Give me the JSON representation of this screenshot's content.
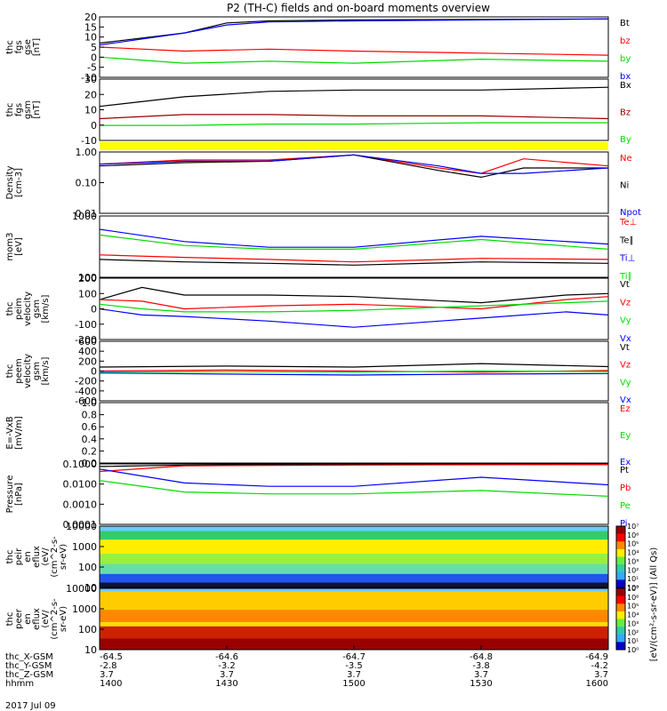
{
  "title": "P2 (TH-C) fields and on-board moments overview",
  "date_label": "2017 Jul 09",
  "colors": {
    "black": "#000000",
    "red": "#ff0000",
    "green": "#00dd00",
    "blue": "#0000ff",
    "darkred": "#990000",
    "yellow": "#ffff00"
  },
  "chart_data": [
    {
      "id": "fgs_gse",
      "type": "line",
      "ylabel": [
        "thc",
        "fgs",
        "gse",
        "[nT]"
      ],
      "yticks": [
        "20",
        "15",
        "10",
        "5",
        "0",
        "-5",
        "-10"
      ],
      "ylim": [
        -10,
        20
      ],
      "legend": [
        {
          "label": "Bt",
          "color": "black"
        },
        {
          "label": "bz",
          "color": "red"
        },
        {
          "label": "by",
          "color": "green"
        },
        {
          "label": "bx",
          "color": "blue"
        }
      ],
      "series": [
        {
          "name": "Bt",
          "color": "black",
          "x": [
            0,
            10,
            15,
            20,
            30,
            60
          ],
          "y": [
            7,
            12,
            17,
            18,
            18.5,
            19
          ]
        },
        {
          "name": "bz",
          "color": "red",
          "x": [
            0,
            10,
            20,
            30,
            45,
            60
          ],
          "y": [
            5,
            3,
            4,
            3,
            2,
            1
          ]
        },
        {
          "name": "by",
          "color": "green",
          "x": [
            0,
            10,
            20,
            30,
            45,
            60
          ],
          "y": [
            0,
            -3,
            -2,
            -3,
            -1,
            -2
          ]
        },
        {
          "name": "bx",
          "color": "blue",
          "x": [
            0,
            10,
            15,
            20,
            30,
            60
          ],
          "y": [
            6,
            12,
            16,
            17.5,
            18,
            19
          ]
        }
      ]
    },
    {
      "id": "fgs_gsm",
      "type": "line",
      "ylabel": [
        "thc",
        "fgs",
        "gsm",
        "[nT]"
      ],
      "yticks": [
        "30",
        "20",
        "10",
        "0",
        "-10"
      ],
      "ylim": [
        -15,
        30
      ],
      "legend": [
        {
          "label": "Bx",
          "color": "black"
        },
        {
          "label": "Bz",
          "color": "darkred"
        },
        {
          "label": "By",
          "color": "green"
        }
      ],
      "series": [
        {
          "name": "Bx",
          "color": "black",
          "x": [
            0,
            10,
            20,
            30,
            45,
            60
          ],
          "y": [
            10,
            17,
            21,
            22,
            22,
            24
          ]
        },
        {
          "name": "Bz",
          "color": "darkred",
          "x": [
            0,
            10,
            20,
            30,
            45,
            60
          ],
          "y": [
            1,
            4,
            4,
            3,
            3,
            1
          ]
        },
        {
          "name": "By",
          "color": "green",
          "x": [
            0,
            10,
            20,
            30,
            45,
            60
          ],
          "y": [
            -4,
            -4,
            -3,
            -3,
            -2,
            -2
          ]
        }
      ]
    },
    {
      "id": "density",
      "type": "line",
      "log": true,
      "ylabel": [
        "Density",
        "[cm-3]"
      ],
      "yticks": [
        "1.00",
        "0.10",
        "0.01"
      ],
      "ylim": [
        0.01,
        1.0
      ],
      "legend": [
        {
          "label": "Ne",
          "color": "red"
        },
        {
          "label": "Ni",
          "color": "black"
        },
        {
          "label": "Npot",
          "color": "blue"
        }
      ],
      "series": [
        {
          "name": "Ne",
          "color": "red",
          "x": [
            0,
            10,
            20,
            30,
            40,
            45,
            50,
            60
          ],
          "y": [
            0.4,
            0.55,
            0.55,
            0.8,
            0.3,
            0.2,
            0.6,
            0.35
          ]
        },
        {
          "name": "Ni",
          "color": "black",
          "x": [
            0,
            10,
            20,
            30,
            40,
            45,
            50,
            60
          ],
          "y": [
            0.35,
            0.45,
            0.5,
            0.8,
            0.25,
            0.15,
            0.3,
            0.3
          ]
        },
        {
          "name": "Npot",
          "color": "blue",
          "x": [
            0,
            10,
            20,
            30,
            40,
            45,
            50,
            60
          ],
          "y": [
            0.4,
            0.5,
            0.5,
            0.8,
            0.35,
            0.2,
            0.2,
            0.3
          ]
        }
      ]
    },
    {
      "id": "temp",
      "type": "line",
      "log": true,
      "ylabel": [
        "mom3",
        "[eV]"
      ],
      "yticks": [
        "1000",
        "100"
      ],
      "ylim": [
        20,
        5000
      ],
      "legend": [
        {
          "label": "Te⊥",
          "color": "red"
        },
        {
          "label": "Te∥",
          "color": "black"
        },
        {
          "label": "Ti⊥",
          "color": "blue"
        },
        {
          "label": "Ti∥",
          "color": "green"
        }
      ],
      "series": [
        {
          "name": "Te⊥",
          "color": "red",
          "x": [
            0,
            10,
            20,
            30,
            45,
            60
          ],
          "y": [
            150,
            120,
            100,
            80,
            110,
            100
          ]
        },
        {
          "name": "Te∥",
          "color": "black",
          "x": [
            0,
            10,
            20,
            30,
            45,
            60
          ],
          "y": [
            100,
            80,
            70,
            60,
            80,
            70
          ]
        },
        {
          "name": "Ti⊥",
          "color": "blue",
          "x": [
            0,
            10,
            20,
            30,
            45,
            60
          ],
          "y": [
            1500,
            500,
            300,
            300,
            800,
            400
          ]
        },
        {
          "name": "Ti∥",
          "color": "green",
          "x": [
            0,
            10,
            20,
            30,
            45,
            60
          ],
          "y": [
            900,
            350,
            250,
            250,
            600,
            250
          ]
        }
      ]
    },
    {
      "id": "peim",
      "type": "line",
      "ylabel": [
        "thc",
        "peim",
        "velocity",
        "gsm",
        "[km/s]"
      ],
      "yticks": [
        "200",
        "100",
        "0",
        "-100",
        "-200"
      ],
      "ylim": [
        -200,
        200
      ],
      "legend": [
        {
          "label": "Vt",
          "color": "black"
        },
        {
          "label": "Vz",
          "color": "red"
        },
        {
          "label": "Vy",
          "color": "green"
        },
        {
          "label": "Vx",
          "color": "blue"
        }
      ],
      "series": [
        {
          "name": "Vt",
          "color": "black",
          "x": [
            0,
            5,
            10,
            20,
            30,
            45,
            55,
            60
          ],
          "y": [
            60,
            140,
            90,
            90,
            80,
            40,
            90,
            100
          ]
        },
        {
          "name": "Vz",
          "color": "red",
          "x": [
            0,
            5,
            10,
            20,
            30,
            45,
            55,
            60
          ],
          "y": [
            60,
            50,
            0,
            20,
            30,
            0,
            60,
            80
          ]
        },
        {
          "name": "Vy",
          "color": "green",
          "x": [
            0,
            5,
            10,
            20,
            30,
            45,
            55,
            60
          ],
          "y": [
            30,
            0,
            -20,
            -20,
            -10,
            20,
            40,
            50
          ]
        },
        {
          "name": "Vx",
          "color": "blue",
          "x": [
            0,
            5,
            10,
            20,
            30,
            45,
            55,
            60
          ],
          "y": [
            0,
            -40,
            -50,
            -80,
            -120,
            -60,
            -20,
            -40
          ]
        }
      ]
    },
    {
      "id": "peem",
      "type": "line",
      "ylabel": [
        "thc",
        "peem",
        "velocity",
        "gsm",
        "[km/s]"
      ],
      "yticks": [
        "600",
        "400",
        "200",
        "0",
        "-200",
        "-400",
        "-600"
      ],
      "ylim": [
        -600,
        600
      ],
      "legend": [
        {
          "label": "Vt",
          "color": "black"
        },
        {
          "label": "Vz",
          "color": "red"
        },
        {
          "label": "Vy",
          "color": "green"
        },
        {
          "label": "Vx",
          "color": "blue"
        }
      ],
      "series": [
        {
          "name": "Vt",
          "color": "black",
          "x": [
            0,
            15,
            30,
            45,
            60
          ],
          "y": [
            80,
            100,
            80,
            150,
            90
          ]
        },
        {
          "name": "Vz",
          "color": "red",
          "x": [
            0,
            15,
            30,
            45,
            60
          ],
          "y": [
            0,
            20,
            0,
            -20,
            10
          ]
        },
        {
          "name": "Vy",
          "color": "green",
          "x": [
            0,
            15,
            30,
            45,
            60
          ],
          "y": [
            -20,
            -10,
            -20,
            0,
            -10
          ]
        },
        {
          "name": "Vx",
          "color": "blue",
          "x": [
            0,
            15,
            30,
            45,
            60
          ],
          "y": [
            -40,
            -60,
            -80,
            -60,
            -50
          ]
        }
      ]
    },
    {
      "id": "efield",
      "type": "line",
      "ylabel": [
        "E=-VxB",
        "[mV/m]"
      ],
      "yticks": [
        "1.0",
        "0.8",
        "0.6",
        "0.4",
        "0.2",
        "0.0"
      ],
      "ylim": [
        0,
        1
      ],
      "legend": [
        {
          "label": "Ez",
          "color": "red"
        },
        {
          "label": "Ey",
          "color": "green"
        },
        {
          "label": "Ex",
          "color": "blue"
        }
      ],
      "series": []
    },
    {
      "id": "pressure",
      "type": "line",
      "log": true,
      "ylabel": [
        "Pressure",
        "[nPa]"
      ],
      "yticks": [
        "0.1000",
        "0.0100",
        "0.0010",
        "0.0001"
      ],
      "ylim": [
        0.0001,
        0.15
      ],
      "legend": [
        {
          "label": "Pt",
          "color": "black"
        },
        {
          "label": "Pb",
          "color": "red"
        },
        {
          "label": "Pe",
          "color": "green"
        },
        {
          "label": "Pi",
          "color": "blue"
        }
      ],
      "series": [
        {
          "name": "Pt",
          "color": "black",
          "x": [
            0,
            10,
            30,
            60
          ],
          "y": [
            0.11,
            0.13,
            0.14,
            0.14
          ]
        },
        {
          "name": "Pb",
          "color": "red",
          "x": [
            0,
            10,
            30,
            60
          ],
          "y": [
            0.06,
            0.12,
            0.13,
            0.14
          ]
        },
        {
          "name": "Pe",
          "color": "green",
          "x": [
            0,
            10,
            20,
            30,
            45,
            60
          ],
          "y": [
            0.02,
            0.005,
            0.004,
            0.004,
            0.006,
            0.003
          ]
        },
        {
          "name": "Pi",
          "color": "blue",
          "x": [
            0,
            10,
            20,
            30,
            45,
            60
          ],
          "y": [
            0.08,
            0.015,
            0.01,
            0.01,
            0.03,
            0.012
          ]
        }
      ]
    },
    {
      "id": "peir",
      "type": "heatmap",
      "ylabel": [
        "thc",
        "peir",
        "en",
        "eflux",
        "(eV/",
        "(cm^2-s-",
        "sr-eV)"
      ],
      "yticks": [
        "10000",
        "1000",
        "100",
        "10"
      ],
      "ylim": [
        5,
        30000
      ]
    },
    {
      "id": "peer",
      "type": "heatmap",
      "ylabel": [
        "thc",
        "peer",
        "en",
        "eflux",
        "(eV/",
        "(cm^2-s-",
        "sr-eV)"
      ],
      "yticks": [
        "10000",
        "1000",
        "100",
        "10"
      ],
      "ylim": [
        5,
        30000
      ]
    }
  ],
  "colorbar": {
    "label": "[eV/(cm²-s-sr-eV)]  (All Qs)",
    "ticks": [
      "10⁷",
      "10⁶",
      "10⁵",
      "10⁴",
      "10³",
      "10²",
      "10¹",
      "10⁰",
      "10⁷",
      "10⁶",
      "10⁵",
      "10⁴",
      "10³",
      "10²",
      "10¹",
      "10⁰"
    ]
  },
  "xaxis": {
    "row_labels": [
      "thc_X-GSM",
      "thc_Y-GSM",
      "thc_Z-GSM",
      "hhmm"
    ],
    "columns": [
      {
        "x": 0,
        "X": "-64.5",
        "Y": "-2.8",
        "Z": "3.7",
        "hhmm": "1400"
      },
      {
        "x": 15,
        "X": "-64.6",
        "Y": "-3.2",
        "Z": "3.7",
        "hhmm": "1430"
      },
      {
        "x": 30,
        "X": "-64.7",
        "Y": "-3.5",
        "Z": "3.7",
        "hhmm": "1500"
      },
      {
        "x": 45,
        "X": "-64.8",
        "Y": "-3.8",
        "Z": "3.7",
        "hhmm": "1530"
      },
      {
        "x": 60,
        "X": "-64.9",
        "Y": "-4.2",
        "Z": "3.7",
        "hhmm": "1600"
      }
    ]
  }
}
